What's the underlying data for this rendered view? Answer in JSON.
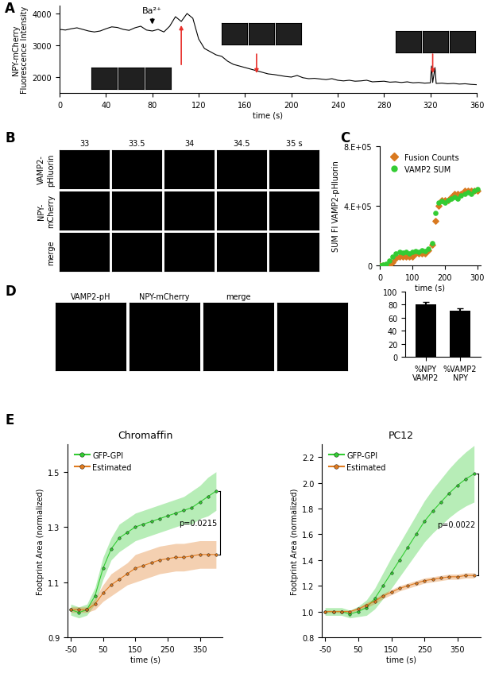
{
  "chart_data": [
    {
      "panel": "A",
      "type": "line",
      "x_label": "time (s)",
      "y_label": "NPY-mCherry\nFluorescence Intensity",
      "x": [
        0,
        5,
        10,
        15,
        20,
        25,
        30,
        35,
        40,
        45,
        50,
        55,
        60,
        65,
        70,
        75,
        80,
        85,
        90,
        95,
        100,
        105,
        110,
        115,
        120,
        125,
        130,
        135,
        140,
        145,
        150,
        155,
        160,
        165,
        170,
        175,
        180,
        185,
        190,
        195,
        200,
        205,
        210,
        215,
        220,
        225,
        230,
        235,
        240,
        245,
        250,
        255,
        260,
        265,
        270,
        275,
        280,
        285,
        290,
        295,
        300,
        305,
        310,
        315,
        320,
        321,
        322,
        324,
        325,
        330,
        335,
        340,
        345,
        350,
        355,
        360
      ],
      "values": [
        3500,
        3480,
        3520,
        3550,
        3500,
        3450,
        3420,
        3450,
        3520,
        3580,
        3560,
        3500,
        3470,
        3550,
        3600,
        3480,
        3450,
        3500,
        3420,
        3600,
        3900,
        3750,
        4000,
        3850,
        3200,
        2900,
        2800,
        2700,
        2650,
        2500,
        2400,
        2350,
        2300,
        2250,
        2200,
        2150,
        2100,
        2080,
        2050,
        2020,
        2000,
        2050,
        1980,
        1950,
        1960,
        1940,
        1920,
        1950,
        1900,
        1880,
        1900,
        1870,
        1880,
        1900,
        1850,
        1860,
        1870,
        1840,
        1850,
        1830,
        1850,
        1820,
        1830,
        1810,
        1820,
        2350,
        1830,
        2300,
        1800,
        1810,
        1790,
        1800,
        1780,
        1790,
        1770,
        1760
      ],
      "color": "#000000",
      "xlim": [
        0,
        360
      ],
      "xticks": [
        0,
        40,
        80,
        120,
        160,
        200,
        240,
        280,
        320,
        360
      ],
      "ylim": [
        1500,
        4250
      ],
      "yticks": [
        2000,
        3000,
        4000
      ],
      "annotations": [
        {
          "text": "Ba²⁺",
          "x": 80
        }
      ],
      "arrows_at": [
        105,
        170,
        322
      ]
    },
    {
      "panel": "C",
      "type": "scatter",
      "x_label": "time (s)",
      "y_label": "SUM FI VAMP2-pHluorin",
      "x": [
        0,
        10,
        20,
        30,
        40,
        50,
        60,
        70,
        80,
        90,
        100,
        110,
        120,
        130,
        140,
        150,
        160,
        170,
        180,
        190,
        200,
        210,
        220,
        230,
        240,
        250,
        260,
        270,
        280,
        290,
        300
      ],
      "series": [
        {
          "name": "Fusion Counts",
          "color": "#d9791f",
          "marker": "diamond",
          "values": [
            0,
            0,
            0,
            0,
            20000,
            50000,
            60000,
            60000,
            60000,
            60000,
            60000,
            80000,
            80000,
            80000,
            80000,
            100000,
            140000,
            300000,
            400000,
            440000,
            440000,
            440000,
            460000,
            480000,
            480000,
            480000,
            500000,
            500000,
            500000,
            500000,
            500000
          ]
        },
        {
          "name": "VAMP2 SUM",
          "color": "#33cc33",
          "marker": "circle",
          "values": [
            0,
            5000,
            10000,
            30000,
            60000,
            80000,
            90000,
            85000,
            90000,
            80000,
            90000,
            95000,
            90000,
            100000,
            95000,
            110000,
            150000,
            350000,
            420000,
            430000,
            420000,
            440000,
            450000,
            460000,
            450000,
            470000,
            480000,
            490000,
            480000,
            500000,
            510000
          ]
        }
      ],
      "xlim": [
        0,
        310
      ],
      "xticks": [
        0,
        100,
        200,
        300
      ],
      "ylim": [
        0,
        800000
      ],
      "yticks": [
        0,
        {
          "value": 400000,
          "label": "4.E+05"
        },
        {
          "value": 800000,
          "label": "8.E+05"
        }
      ],
      "legend": "upper left"
    },
    {
      "type": "bar",
      "categories": [
        "%NPY\nVAMP2",
        "%VAMP2\nNPY"
      ],
      "values": [
        81,
        71
      ],
      "errors": [
        3,
        3
      ],
      "color": "#000000",
      "ylim": [
        0,
        100
      ],
      "yticks": [
        0,
        20,
        40,
        60,
        80,
        100
      ]
    },
    {
      "panel": "E",
      "type": "line",
      "title": "Chromaffin",
      "x_label": "time (s)",
      "y_label": "Footprint Area (normalized)",
      "x": [
        -50,
        -25,
        0,
        25,
        50,
        75,
        100,
        125,
        150,
        175,
        200,
        225,
        250,
        275,
        300,
        325,
        350,
        375,
        400
      ],
      "series": [
        {
          "name": "GFP-GPI",
          "color": "#33cc33",
          "marker": "circle",
          "values": [
            1.0,
            0.99,
            1.0,
            1.05,
            1.15,
            1.22,
            1.26,
            1.28,
            1.3,
            1.31,
            1.32,
            1.33,
            1.34,
            1.35,
            1.36,
            1.37,
            1.39,
            1.41,
            1.43
          ],
          "errors": [
            0.02,
            0.02,
            0.02,
            0.03,
            0.04,
            0.04,
            0.05,
            0.05,
            0.05,
            0.05,
            0.05,
            0.05,
            0.05,
            0.05,
            0.05,
            0.06,
            0.06,
            0.07,
            0.07
          ]
        },
        {
          "name": "Estimated",
          "color": "#e07b20",
          "marker": "circle",
          "values": [
            1.0,
            1.0,
            1.0,
            1.02,
            1.06,
            1.09,
            1.11,
            1.13,
            1.15,
            1.16,
            1.17,
            1.18,
            1.185,
            1.19,
            1.19,
            1.195,
            1.2,
            1.2,
            1.2
          ],
          "errors": [
            0.01,
            0.01,
            0.01,
            0.02,
            0.03,
            0.04,
            0.04,
            0.04,
            0.05,
            0.05,
            0.05,
            0.05,
            0.05,
            0.05,
            0.05,
            0.05,
            0.05,
            0.05,
            0.05
          ]
        }
      ],
      "xlim": [
        -60,
        420
      ],
      "xticks": [
        -50,
        50,
        150,
        250,
        350
      ],
      "ylim": [
        0.9,
        1.6
      ],
      "yticks": [
        0.9,
        1.1,
        1.3,
        1.5
      ],
      "legend": "upper left",
      "annotations": [
        {
          "text": "p=0.0215"
        }
      ]
    },
    {
      "type": "line",
      "title": "PC12",
      "x_label": "time (s)",
      "y_label": "Footprint Area (normalized)",
      "x": [
        -50,
        -25,
        0,
        25,
        50,
        75,
        100,
        125,
        150,
        175,
        200,
        225,
        250,
        275,
        300,
        325,
        350,
        375,
        400
      ],
      "series": [
        {
          "name": "GFP-GPI",
          "color": "#33cc33",
          "marker": "circle",
          "values": [
            1.0,
            1.0,
            1.0,
            0.98,
            1.0,
            1.03,
            1.1,
            1.2,
            1.3,
            1.4,
            1.5,
            1.6,
            1.7,
            1.78,
            1.85,
            1.92,
            1.98,
            2.03,
            2.07
          ],
          "errors": [
            0.03,
            0.03,
            0.03,
            0.03,
            0.04,
            0.06,
            0.08,
            0.1,
            0.12,
            0.13,
            0.14,
            0.15,
            0.16,
            0.17,
            0.18,
            0.19,
            0.2,
            0.21,
            0.22
          ]
        },
        {
          "name": "Estimated",
          "color": "#e07b20",
          "marker": "circle",
          "values": [
            1.0,
            1.0,
            1.0,
            1.0,
            1.02,
            1.05,
            1.08,
            1.12,
            1.15,
            1.18,
            1.2,
            1.22,
            1.24,
            1.25,
            1.26,
            1.27,
            1.27,
            1.28,
            1.28
          ],
          "errors": [
            0.01,
            0.01,
            0.01,
            0.01,
            0.01,
            0.02,
            0.02,
            0.02,
            0.02,
            0.02,
            0.02,
            0.02,
            0.02,
            0.02,
            0.02,
            0.02,
            0.02,
            0.02,
            0.02
          ]
        }
      ],
      "xlim": [
        -60,
        420
      ],
      "xticks": [
        -50,
        50,
        150,
        250,
        350
      ],
      "ylim": [
        0.8,
        2.3
      ],
      "yticks": [
        0.8,
        1.0,
        1.2,
        1.4,
        1.6,
        1.8,
        2.0,
        2.2
      ],
      "legend": "upper left",
      "annotations": [
        {
          "text": "p=0.0022"
        }
      ]
    }
  ],
  "image_panels": [
    {
      "panel": "B",
      "columns": [
        "33",
        "33.5",
        "34",
        "34.5",
        "35 s"
      ],
      "rows": [
        "VAMP2-\npHluorin",
        "NPY-\nmCherry",
        "merge"
      ]
    },
    {
      "panel": "D",
      "columns": [
        "VAMP2-pH",
        "NPY-mCherry",
        "merge"
      ]
    }
  ]
}
